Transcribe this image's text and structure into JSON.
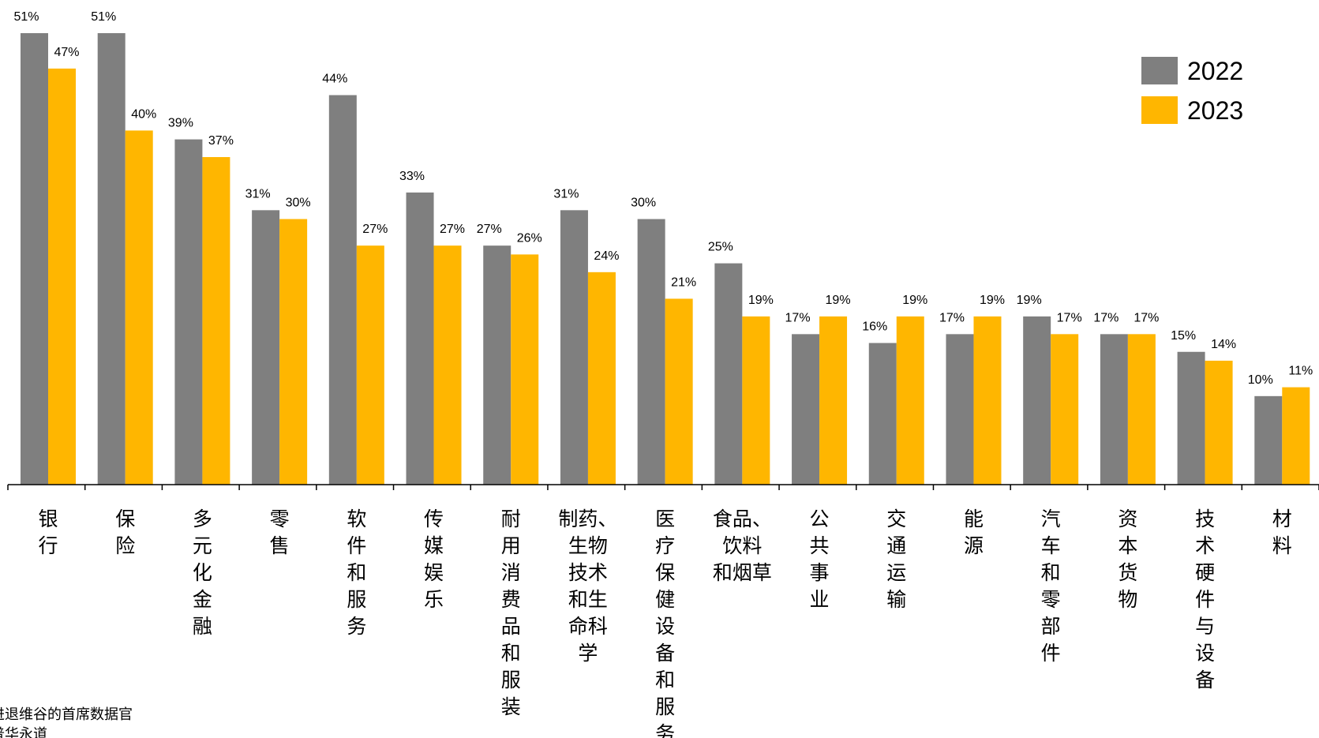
{
  "chart_data": {
    "type": "bar",
    "categories": [
      "银行",
      "保险",
      "多元化金融",
      "零售",
      "软件和服务",
      "传媒娱乐",
      "耐用消费品和服装",
      "制药、生物技术和生命科学",
      "医疗保健设备和服务",
      "食品、饮料和烟草",
      "公共事业",
      "交通运输",
      "能源",
      "汽车和零部件",
      "资本货物",
      "技术硬件与设备",
      "材料"
    ],
    "category_label_lines": [
      [
        "银行"
      ],
      [
        "保险"
      ],
      [
        "多元化金融"
      ],
      [
        "零售"
      ],
      [
        "软件和服务"
      ],
      [
        "传媒娱乐"
      ],
      [
        "耐用消费品和服装"
      ],
      [
        "制药、",
        "生物",
        "技术",
        "和生",
        "命科",
        "学"
      ],
      [
        "医疗保健设备和服务"
      ],
      [
        "食品、",
        "饮料",
        "和烟草"
      ],
      [
        "公共事业"
      ],
      [
        "交通运输"
      ],
      [
        "能源"
      ],
      [
        "汽车和零部件"
      ],
      [
        "资本货物"
      ],
      [
        "技术硬件与设备"
      ],
      [
        "材料"
      ]
    ],
    "series": [
      {
        "name": "2022",
        "color": "#7f7f7f",
        "values": [
          51,
          51,
          39,
          31,
          44,
          33,
          27,
          31,
          30,
          25,
          17,
          16,
          17,
          19,
          17,
          15,
          10
        ]
      },
      {
        "name": "2023",
        "color": "#ffb600",
        "values": [
          47,
          40,
          37,
          30,
          27,
          27,
          26,
          24,
          21,
          19,
          19,
          19,
          19,
          17,
          17,
          14,
          11
        ]
      }
    ],
    "value_suffix": "%",
    "ylim": [
      0,
      55
    ],
    "grid": false,
    "legend_position": "top-right"
  },
  "footnote": {
    "lines": [
      "进退维谷的首席数据官",
      "普华永道"
    ]
  }
}
